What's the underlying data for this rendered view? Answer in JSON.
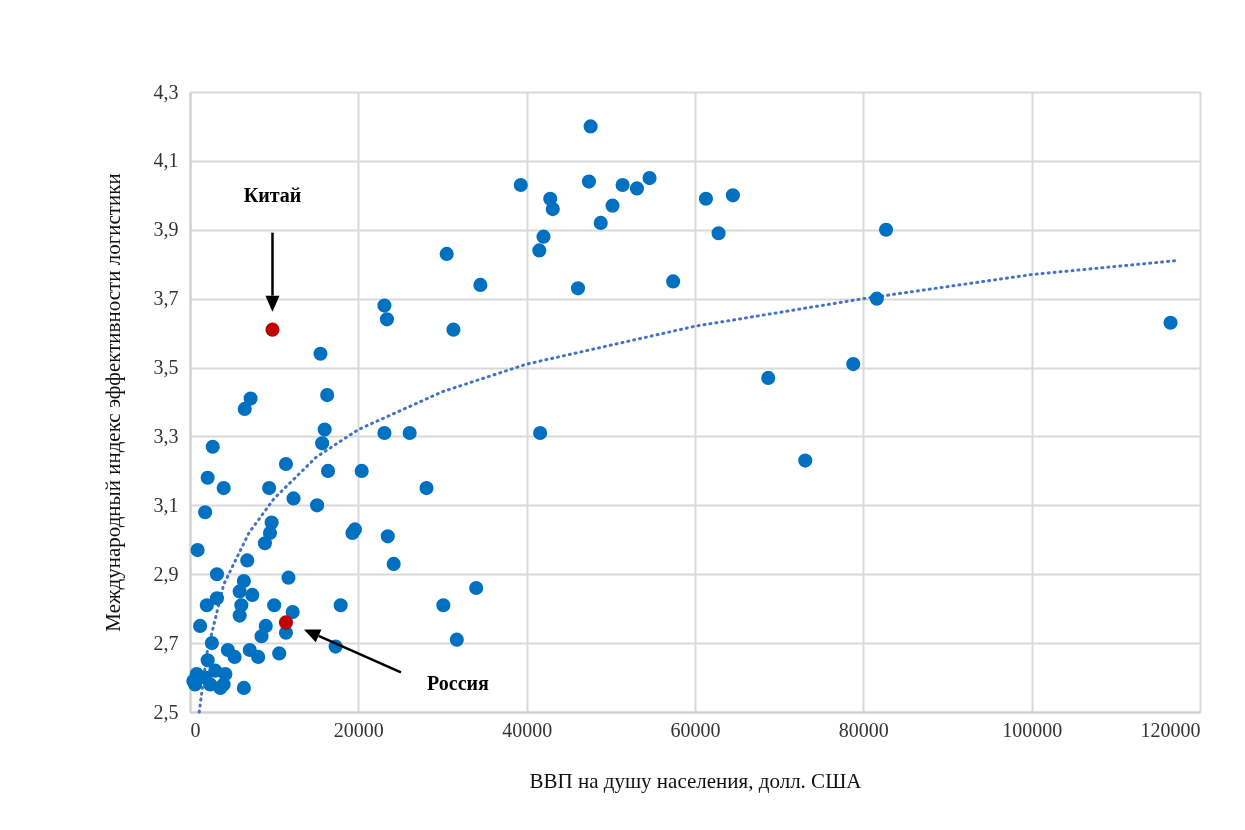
{
  "chart_data": {
    "type": "scatter",
    "xlabel": "ВВП на душу населения, долл. США",
    "ylabel": "Международный индекс эффективности логистики",
    "xlim": [
      0,
      120000
    ],
    "xticks": [
      0,
      20000,
      40000,
      60000,
      80000,
      100000,
      120000
    ],
    "ylim": [
      2.5,
      4.3
    ],
    "yticks": [
      {
        "value": 2.5,
        "label": "2,5"
      },
      {
        "value": 2.7,
        "label": "2,7"
      },
      {
        "value": 2.9,
        "label": "2,9"
      },
      {
        "value": 3.1,
        "label": "3,1"
      },
      {
        "value": 3.3,
        "label": "3,3"
      },
      {
        "value": 3.5,
        "label": "3,5"
      },
      {
        "value": 3.7,
        "label": "3,7"
      },
      {
        "value": 3.9,
        "label": "3,9"
      },
      {
        "value": 4.1,
        "label": "4,1"
      },
      {
        "value": 4.3,
        "label": "4,3"
      }
    ],
    "grid": true,
    "marker": "circle",
    "series": [
      {
        "type": "scatter",
        "color": "#0070c0",
        "x": [
          47600,
          39300,
          42800,
          43100,
          47400,
          51400,
          53100,
          54600,
          50200,
          48800,
          42000,
          41500,
          46100,
          61300,
          64500,
          62800,
          82700,
          57400,
          81600,
          116500,
          68700,
          78800,
          73100,
          30500,
          34500,
          31300,
          23100,
          23400,
          41600,
          15500,
          16300,
          7200,
          6500,
          23100,
          26100,
          16000,
          15700,
          2700,
          11400,
          16400,
          20400,
          2100,
          4000,
          9400,
          12300,
          28100,
          15100,
          1800,
          9700,
          9500,
          8900,
          19300,
          19600,
          23500,
          900,
          6800,
          24200,
          3200,
          11700,
          6400,
          7400,
          34000,
          5900,
          6100,
          3200,
          2000,
          10000,
          17900,
          30100,
          12200,
          5900,
          8500,
          9000,
          11400,
          31700,
          1200,
          2600,
          4500,
          7100,
          10600,
          8100,
          17300,
          5300,
          2100,
          6400,
          600,
          800,
          1800,
          3000,
          4200,
          4000,
          2400,
          400,
          3600
        ],
        "values": [
          4.2,
          4.03,
          3.99,
          3.96,
          4.04,
          4.03,
          4.02,
          4.05,
          3.97,
          3.92,
          3.88,
          3.84,
          3.73,
          3.99,
          4.0,
          3.89,
          3.9,
          3.75,
          3.7,
          3.63,
          3.47,
          3.51,
          3.23,
          3.83,
          3.74,
          3.61,
          3.68,
          3.64,
          3.31,
          3.54,
          3.42,
          3.41,
          3.38,
          3.31,
          3.31,
          3.32,
          3.28,
          3.27,
          3.22,
          3.2,
          3.2,
          3.18,
          3.15,
          3.15,
          3.12,
          3.15,
          3.1,
          3.08,
          3.05,
          3.02,
          2.99,
          3.02,
          3.03,
          3.01,
          2.97,
          2.94,
          2.93,
          2.9,
          2.89,
          2.88,
          2.84,
          2.86,
          2.85,
          2.81,
          2.83,
          2.81,
          2.81,
          2.81,
          2.81,
          2.79,
          2.78,
          2.72,
          2.75,
          2.73,
          2.71,
          2.75,
          2.7,
          2.68,
          2.68,
          2.67,
          2.66,
          2.69,
          2.66,
          2.65,
          2.57,
          2.58,
          2.61,
          2.6,
          2.62,
          2.61,
          2.58,
          2.58,
          2.59,
          2.57
        ]
      },
      {
        "type": "scatter",
        "color": "#c00000",
        "x": [
          9800,
          11400
        ],
        "values": [
          3.61,
          2.76
        ]
      },
      {
        "type": "line",
        "color": "#4472c4",
        "line_style": "dotted",
        "marker": "none",
        "x": [
          1100,
          2000,
          4000,
          7000,
          10000,
          15000,
          20000,
          30000,
          40000,
          60000,
          80000,
          100000,
          117000
        ],
        "values": [
          2.5,
          2.67,
          2.87,
          3.02,
          3.12,
          3.24,
          3.32,
          3.43,
          3.51,
          3.62,
          3.7,
          3.77,
          3.81
        ]
      }
    ],
    "annotations": [
      "Китай",
      "Россия"
    ]
  }
}
